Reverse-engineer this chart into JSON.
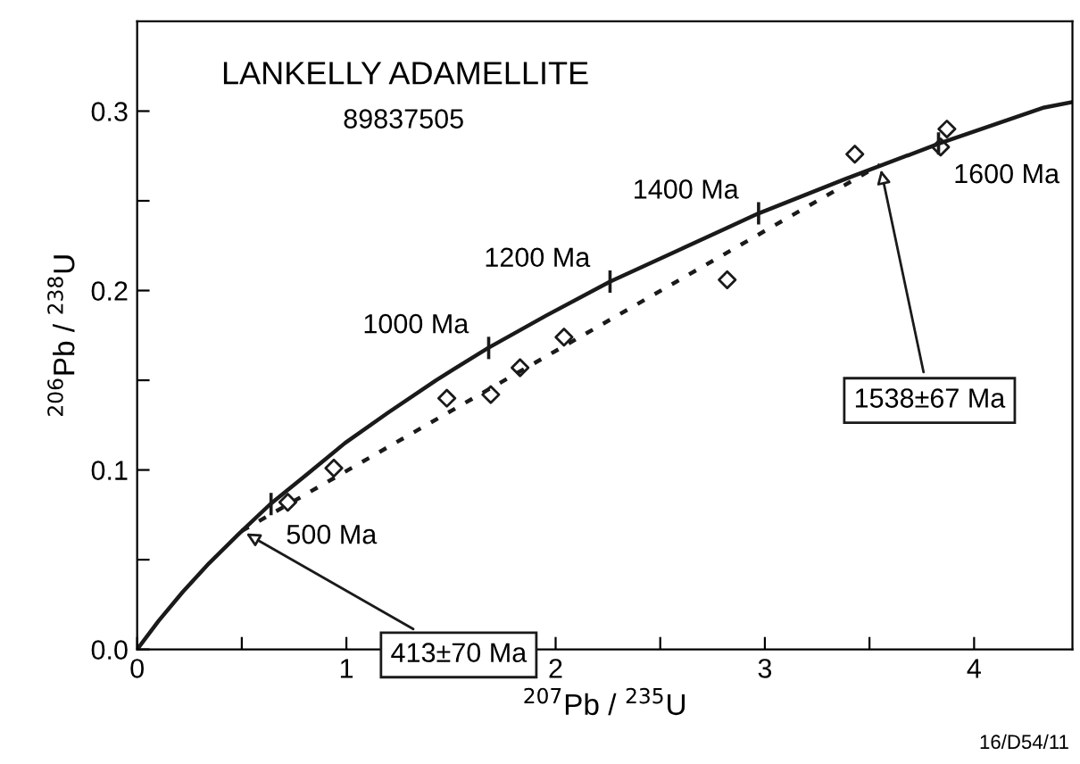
{
  "chart_data": {
    "type": "line",
    "title": "LANKELLY ADAMELLITE",
    "subtitle": "89837505",
    "xlabel": "$^{207}$Pb / $^{235}$U",
    "ylabel": "$^{206}$Pb / $^{238}$U",
    "xlim": [
      0,
      4.47
    ],
    "ylim": [
      0,
      0.35
    ],
    "xticks": [
      0,
      {
        "value": 0.5,
        "label": null
      },
      1,
      {
        "value": 1.5,
        "label": null
      },
      2,
      {
        "value": 2.5,
        "label": null
      },
      3,
      {
        "value": 3.5,
        "label": null
      },
      4
    ],
    "yticks": [
      {
        "value": 0,
        "label": "0.0"
      },
      {
        "value": 0.05,
        "label": null
      },
      0.1,
      {
        "value": 0.15,
        "label": null
      },
      0.2,
      {
        "value": 0.25,
        "label": null
      },
      0.3
    ],
    "grid": false,
    "legend": false,
    "series": [
      {
        "color": "#1a1a1a",
        "line_style": "solid",
        "marker": "none",
        "x": [
          0,
          0.1034,
          0.2177,
          0.3437,
          0.4828,
          0.6366,
          0.8062,
          0.9934,
          1.1999,
          1.4285,
          1.6774,
          1.9545,
          2.2604,
          2.5976,
          2.97,
          3.3809,
          3.8346,
          4.3349,
          4.47
        ],
        "values": [
          0,
          0.016,
          0.032,
          0.048,
          0.064,
          0.081,
          0.097,
          0.115,
          0.132,
          0.15,
          0.168,
          0.186,
          0.205,
          0.223,
          0.243,
          0.262,
          0.282,
          0.302,
          0.305
        ]
      },
      {
        "color": "#1a1a1a",
        "line_style": "dotted",
        "marker": "none",
        "x": [
          0.5,
          3.55
        ],
        "values": [
          0.066,
          0.27
        ]
      },
      {
        "type": "scatter",
        "color": "#1a1a1a",
        "marker": "diamond",
        "x": [
          0.72,
          0.94,
          1.48,
          1.69,
          1.83,
          2.04,
          2.82,
          3.43,
          3.84,
          3.87
        ],
        "values": [
          0.082,
          0.101,
          0.14,
          0.142,
          0.157,
          0.174,
          0.206,
          0.276,
          0.28,
          0.29
        ]
      }
    ],
    "annotations": [
      {
        "text": "500 Ma",
        "x": 0.64,
        "y": 0.081
      },
      {
        "text": "1000 Ma",
        "x": 1.68,
        "y": 0.168
      },
      {
        "text": "1200 Ma",
        "x": 2.26,
        "y": 0.205
      },
      {
        "text": "1400 Ma",
        "x": 2.97,
        "y": 0.243
      },
      {
        "text": "1600 Ma",
        "x": 3.83,
        "y": 0.282
      },
      {
        "text": "413±70 Ma",
        "x": 0.5,
        "y": 0.066
      },
      {
        "text": "1538±67 Ma",
        "x": 3.55,
        "y": 0.27
      },
      "16/D54/11"
    ]
  }
}
